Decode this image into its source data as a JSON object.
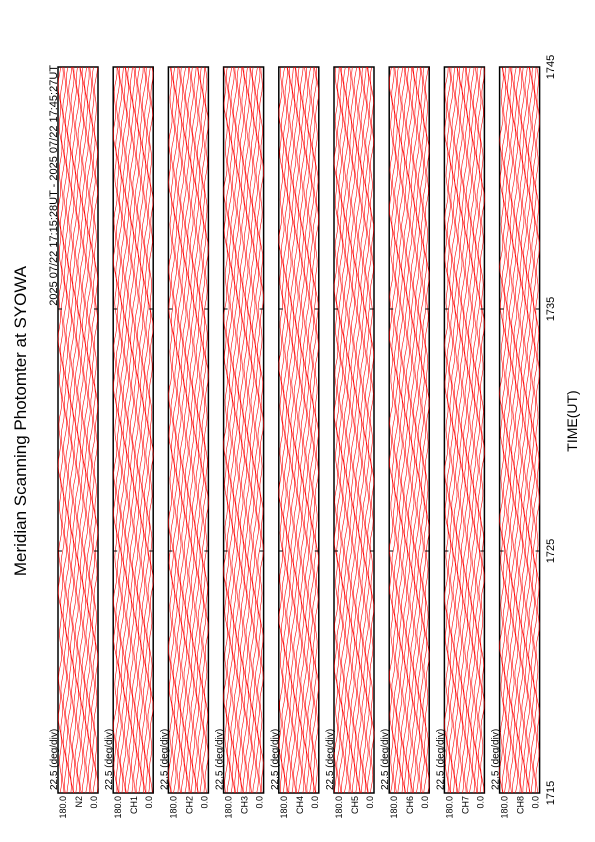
{
  "chart_data": {
    "type": "msp-stack",
    "title": "Meridian Scanning Photomter at SYOWA",
    "subtitle": "2025 07/22 17:15:28UT - 2025 07/22 17:45:27UT",
    "xlabel": "TIME(UT)",
    "xlim": [
      1715,
      1745
    ],
    "xticks": [
      1715,
      1725,
      1735,
      1745
    ],
    "color": "#ff0000",
    "panels": [
      {
        "channel": "N2",
        "top": "180.0",
        "bottom": "0.0",
        "scale": "22.5 (deg/div)"
      },
      {
        "channel": "CH1",
        "top": "180.0",
        "bottom": "0.0",
        "scale": "22.5 (deg/div)"
      },
      {
        "channel": "CH2",
        "top": "180.0",
        "bottom": "0.0",
        "scale": "22.5 (deg/div)"
      },
      {
        "channel": "CH3",
        "top": "180.0",
        "bottom": "0.0",
        "scale": "22.5 (deg/div)"
      },
      {
        "channel": "CH4",
        "top": "180.0",
        "bottom": "0.0",
        "scale": "22.5 (deg/div)"
      },
      {
        "channel": "CH5",
        "top": "180.0",
        "bottom": "0.0",
        "scale": "22.5 (deg/div)"
      },
      {
        "channel": "CH6",
        "top": "180.0",
        "bottom": "0.0",
        "scale": "22.5 (deg/div)"
      },
      {
        "channel": "CH7",
        "top": "180.0",
        "bottom": "0.0",
        "scale": "22.5 (deg/div)"
      },
      {
        "channel": "CH8",
        "top": "180.0",
        "bottom": "0.0",
        "scale": "22.5 (deg/div)"
      }
    ]
  }
}
